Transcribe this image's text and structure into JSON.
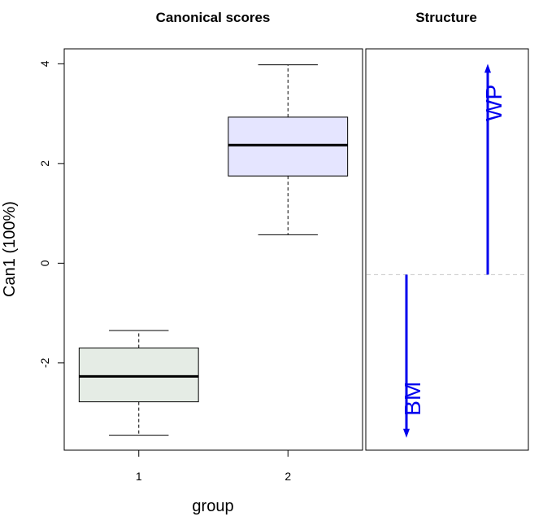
{
  "chart_data": [
    {
      "type": "box",
      "title": "Canonical scores",
      "xlabel": "group",
      "ylabel": "Can1 (100%)",
      "categories": [
        "1",
        "2"
      ],
      "ylim": [
        -3.75,
        4.3
      ],
      "yticks": [
        -2,
        0,
        2,
        4
      ],
      "ytick_labels": [
        "-2",
        "0",
        "2",
        "4"
      ],
      "boxes": [
        {
          "group": "1",
          "whisker_low": -3.45,
          "q1": -2.78,
          "median": -2.27,
          "q3": -1.7,
          "whisker_high": -1.35,
          "fill": "#e5ece5"
        },
        {
          "group": "2",
          "whisker_low": 0.57,
          "q1": 1.75,
          "median": 2.37,
          "q3": 2.93,
          "whisker_high": 3.98,
          "fill": "#e5e5ff"
        }
      ]
    },
    {
      "type": "vector",
      "title": "Structure",
      "ylim": [
        -3.75,
        4.3
      ],
      "reference_line": -0.23,
      "color": "#0000ee",
      "vectors": [
        {
          "label": "BM",
          "x": -0.5,
          "from": -0.23,
          "to": -3.5
        },
        {
          "label": "WP",
          "x": 0.5,
          "from": -0.23,
          "to": 4.0
        }
      ]
    }
  ]
}
